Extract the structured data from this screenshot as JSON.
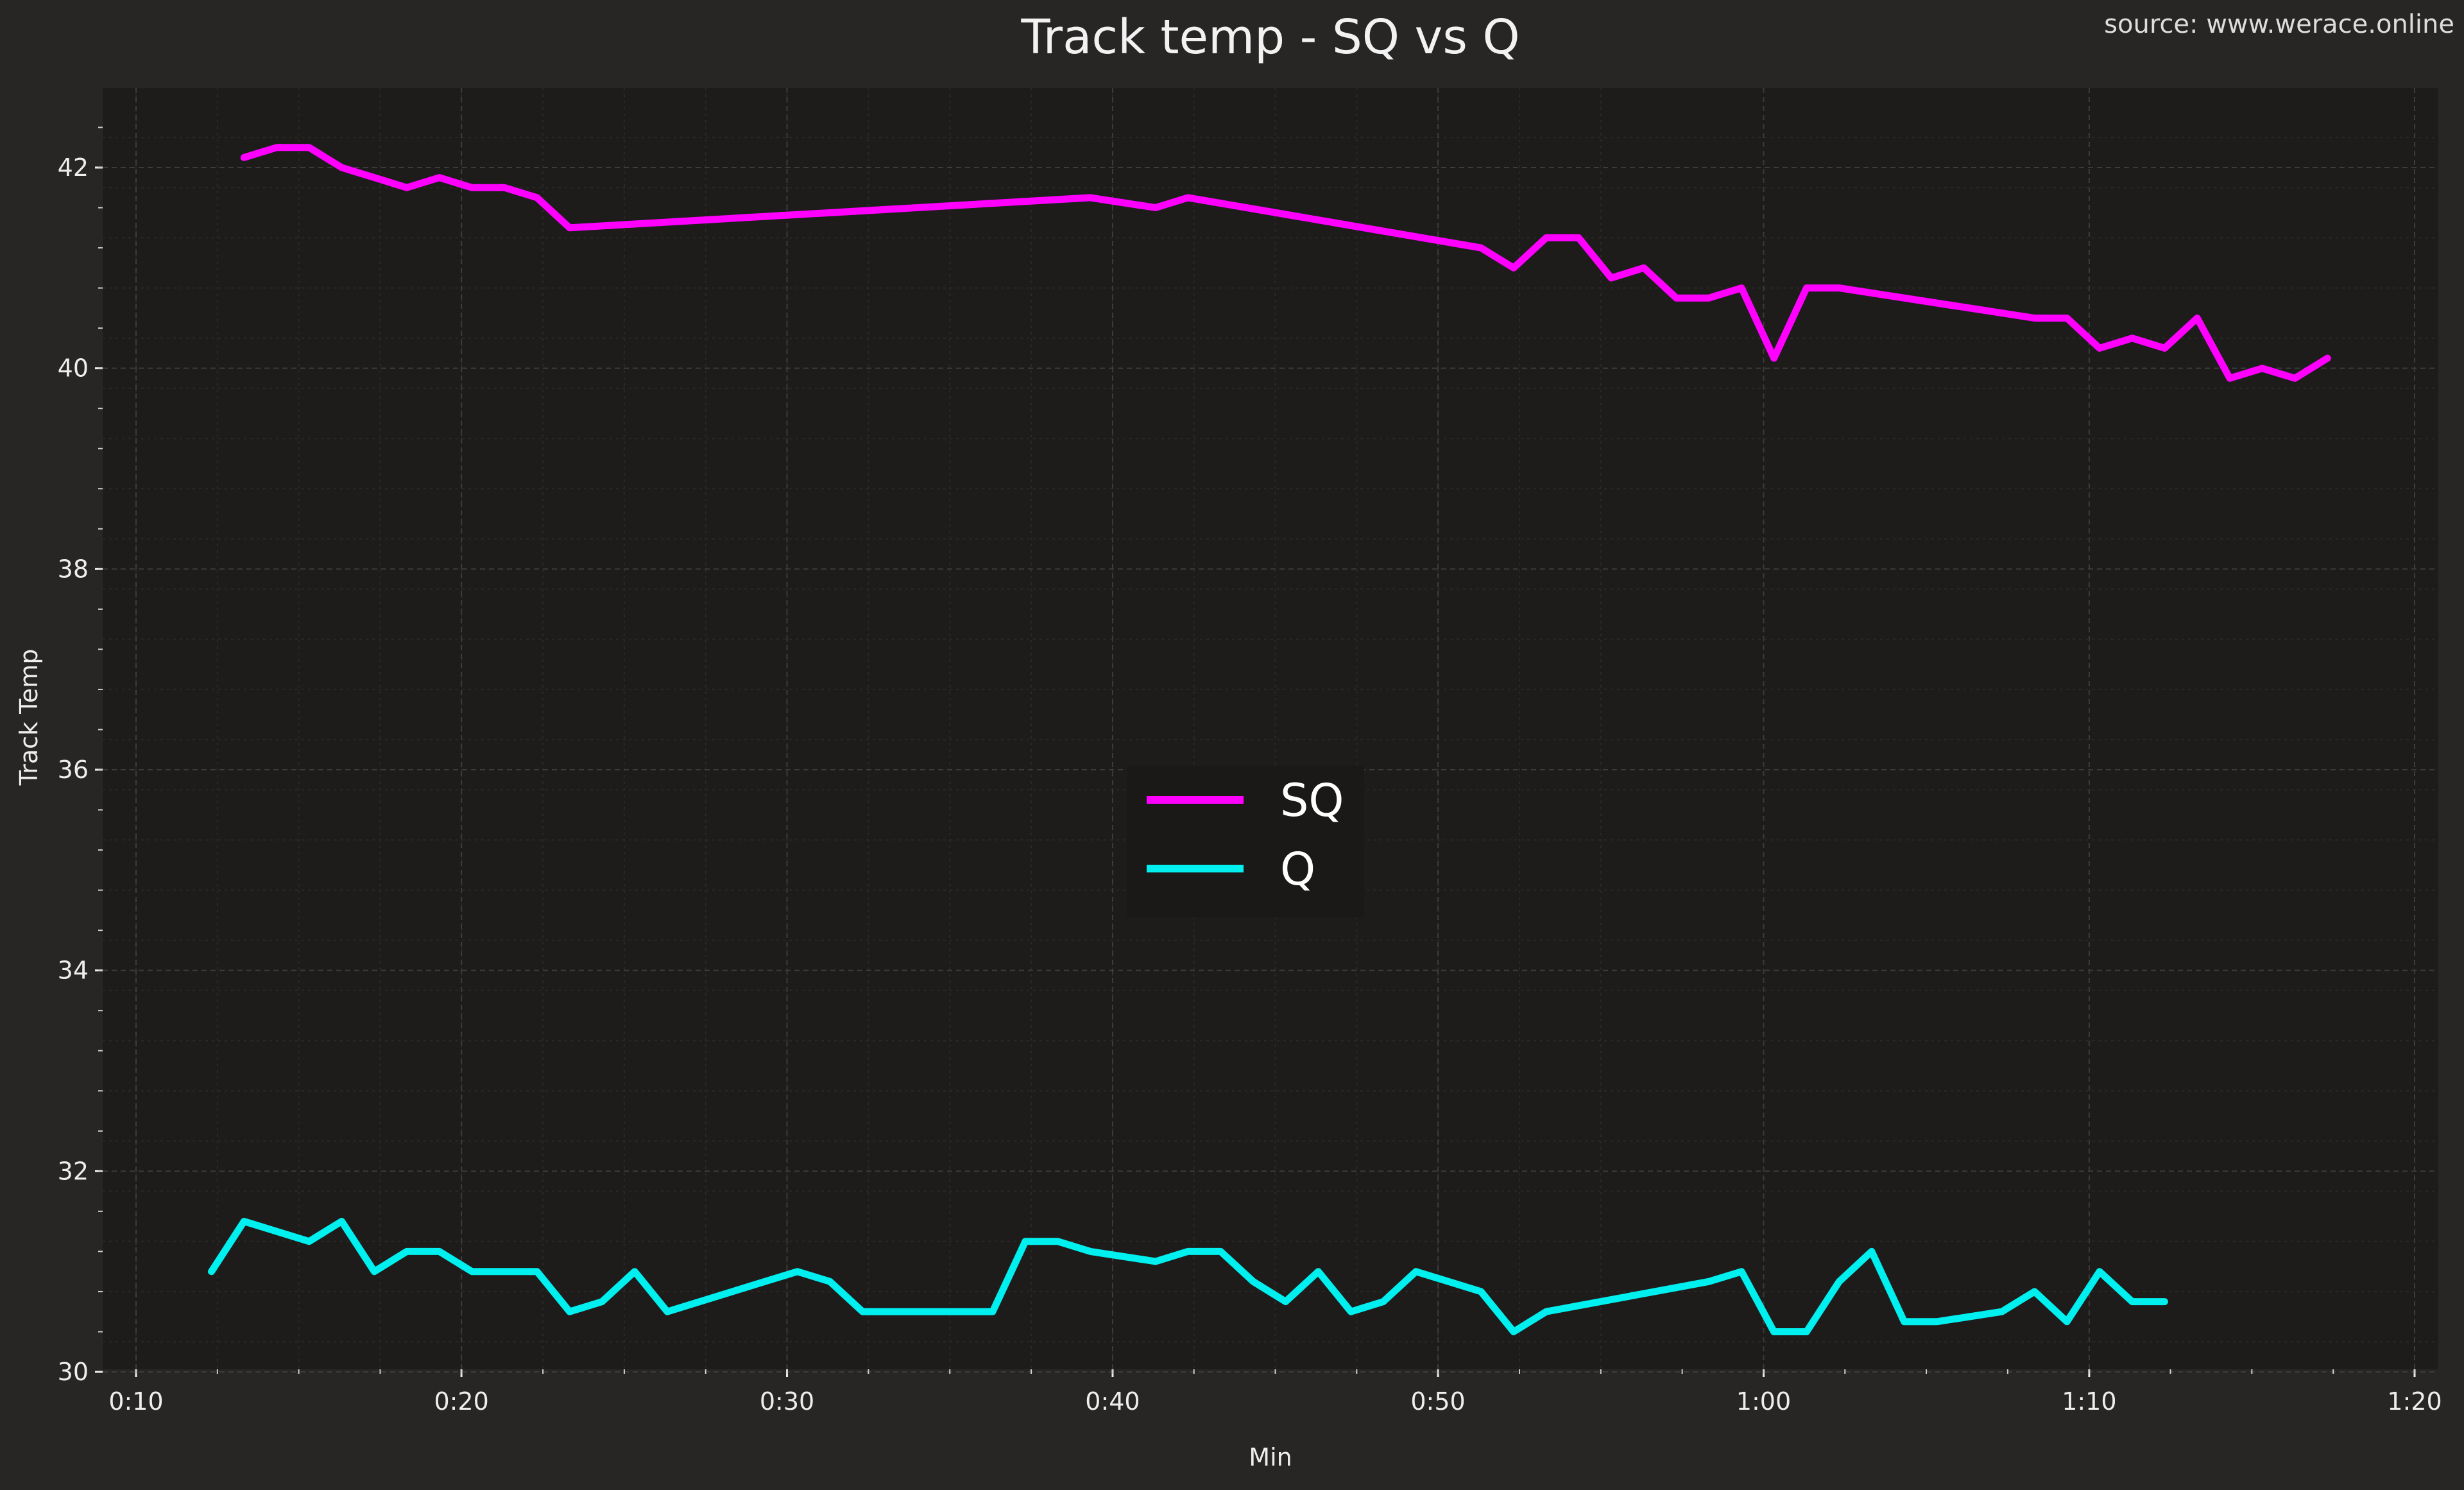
{
  "chart_data": {
    "type": "line",
    "title": "Track temp - SQ vs Q",
    "source": "source: www.werace.online",
    "xlabel": "Min",
    "ylabel": "Track Temp",
    "xlim": [
      0.1,
      1.3
    ],
    "ylim": [
      29.8,
      42.8
    ],
    "x_ticks": [
      {
        "value": 0.1667,
        "label": "0:10"
      },
      {
        "value": 0.3333,
        "label": "0:20"
      },
      {
        "value": 0.5,
        "label": "0:30"
      },
      {
        "value": 0.6667,
        "label": "0:40"
      },
      {
        "value": 0.8333,
        "label": "0:50"
      },
      {
        "value": 1.0,
        "label": "1:00"
      },
      {
        "value": 1.1667,
        "label": "1:10"
      },
      {
        "value": 1.3333,
        "label": "1:20"
      }
    ],
    "y_ticks": [
      30,
      32,
      34,
      36,
      38,
      40,
      42
    ],
    "grid": true,
    "legend_position": "center",
    "series": [
      {
        "name": "SQ",
        "color": "#ff00ff",
        "x": [
          0.222,
          0.2387,
          0.2553,
          0.272,
          0.2887,
          0.3053,
          0.322,
          0.3387,
          0.3553,
          0.372,
          0.3887,
          0.6553,
          0.6887,
          0.7053,
          0.8553,
          0.872,
          0.8887,
          0.9053,
          0.922,
          0.9387,
          0.9553,
          0.972,
          0.9887,
          1.0053,
          1.022,
          1.0387,
          1.1387,
          1.1553,
          1.172,
          1.1887,
          1.2053,
          1.222,
          1.2387,
          1.2553,
          1.272,
          1.2887
        ],
        "y": [
          42.1,
          42.2,
          42.2,
          42.0,
          41.9,
          41.8,
          41.9,
          41.8,
          41.8,
          41.7,
          41.4,
          41.7,
          41.6,
          41.7,
          41.2,
          41.0,
          41.3,
          41.3,
          40.9,
          41.0,
          40.7,
          40.7,
          40.8,
          40.1,
          40.8,
          40.8,
          40.5,
          40.5,
          40.2,
          40.3,
          40.2,
          40.5,
          39.9,
          40.0,
          39.9,
          40.1
        ]
      },
      {
        "name": "Q",
        "color": "#00f0f0",
        "x": [
          0.2053,
          0.222,
          0.2553,
          0.272,
          0.2887,
          0.3053,
          0.322,
          0.3387,
          0.3553,
          0.372,
          0.3887,
          0.4053,
          0.422,
          0.4387,
          0.4553,
          0.4887,
          0.5053,
          0.522,
          0.5387,
          0.6053,
          0.622,
          0.6387,
          0.6553,
          0.6887,
          0.7053,
          0.722,
          0.7387,
          0.7553,
          0.772,
          0.7887,
          0.8053,
          0.822,
          0.8553,
          0.872,
          0.8887,
          0.972,
          0.9887,
          1.0053,
          1.022,
          1.0387,
          1.0553,
          1.072,
          1.0887,
          1.122,
          1.1387,
          1.1553,
          1.172,
          1.1887,
          1.2053
        ],
        "y": [
          31.0,
          31.5,
          31.3,
          31.5,
          31.0,
          31.2,
          31.2,
          31.0,
          31.0,
          31.0,
          30.6,
          30.7,
          31.0,
          30.6,
          30.7,
          30.9,
          31.0,
          30.9,
          30.6,
          30.6,
          31.3,
          31.3,
          31.2,
          31.1,
          31.2,
          31.2,
          30.9,
          30.7,
          31.0,
          30.6,
          30.7,
          31.0,
          30.8,
          30.4,
          30.6,
          30.9,
          31.0,
          30.4,
          30.4,
          30.9,
          31.2,
          30.5,
          30.5,
          30.6,
          30.8,
          30.5,
          31.0,
          30.7,
          30.7
        ]
      }
    ]
  }
}
